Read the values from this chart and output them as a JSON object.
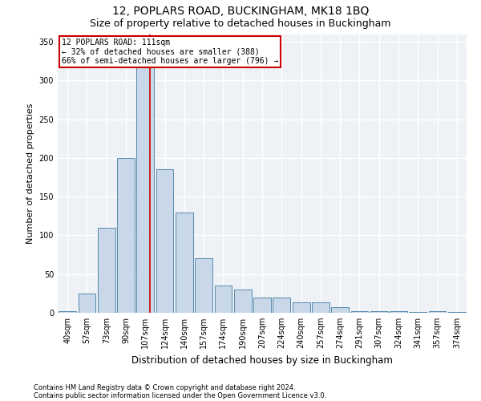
{
  "title1": "12, POPLARS ROAD, BUCKINGHAM, MK18 1BQ",
  "title2": "Size of property relative to detached houses in Buckingham",
  "xlabel": "Distribution of detached houses by size in Buckingham",
  "ylabel": "Number of detached properties",
  "footnote1": "Contains HM Land Registry data © Crown copyright and database right 2024.",
  "footnote2": "Contains public sector information licensed under the Open Government Licence v3.0.",
  "categories": [
    "40sqm",
    "57sqm",
    "73sqm",
    "90sqm",
    "107sqm",
    "124sqm",
    "140sqm",
    "157sqm",
    "174sqm",
    "190sqm",
    "207sqm",
    "224sqm",
    "240sqm",
    "257sqm",
    "274sqm",
    "291sqm",
    "307sqm",
    "324sqm",
    "341sqm",
    "357sqm",
    "374sqm"
  ],
  "values": [
    2,
    25,
    110,
    200,
    325,
    185,
    130,
    70,
    35,
    30,
    20,
    20,
    13,
    13,
    7,
    2,
    2,
    2,
    1,
    2,
    1
  ],
  "bar_color": "#c8d8e8",
  "bar_edge_color": "#5588aa",
  "annotation_text": "12 POPLARS ROAD: 111sqm\n← 32% of detached houses are smaller (388)\n66% of semi-detached houses are larger (796) →",
  "annotation_box_color": "#ffffff",
  "annotation_box_edge": "#cc0000",
  "ylim": [
    0,
    360
  ],
  "yticks": [
    0,
    50,
    100,
    150,
    200,
    250,
    300,
    350
  ],
  "bg_color": "#eef2f7",
  "grid_color": "#ffffff",
  "title_fontsize": 10,
  "subtitle_fontsize": 9,
  "xlabel_fontsize": 8.5,
  "ylabel_fontsize": 8,
  "tick_fontsize": 7,
  "footnote_fontsize": 6,
  "bar_linewidth": 0.7,
  "red_line_color": "#cc0000"
}
